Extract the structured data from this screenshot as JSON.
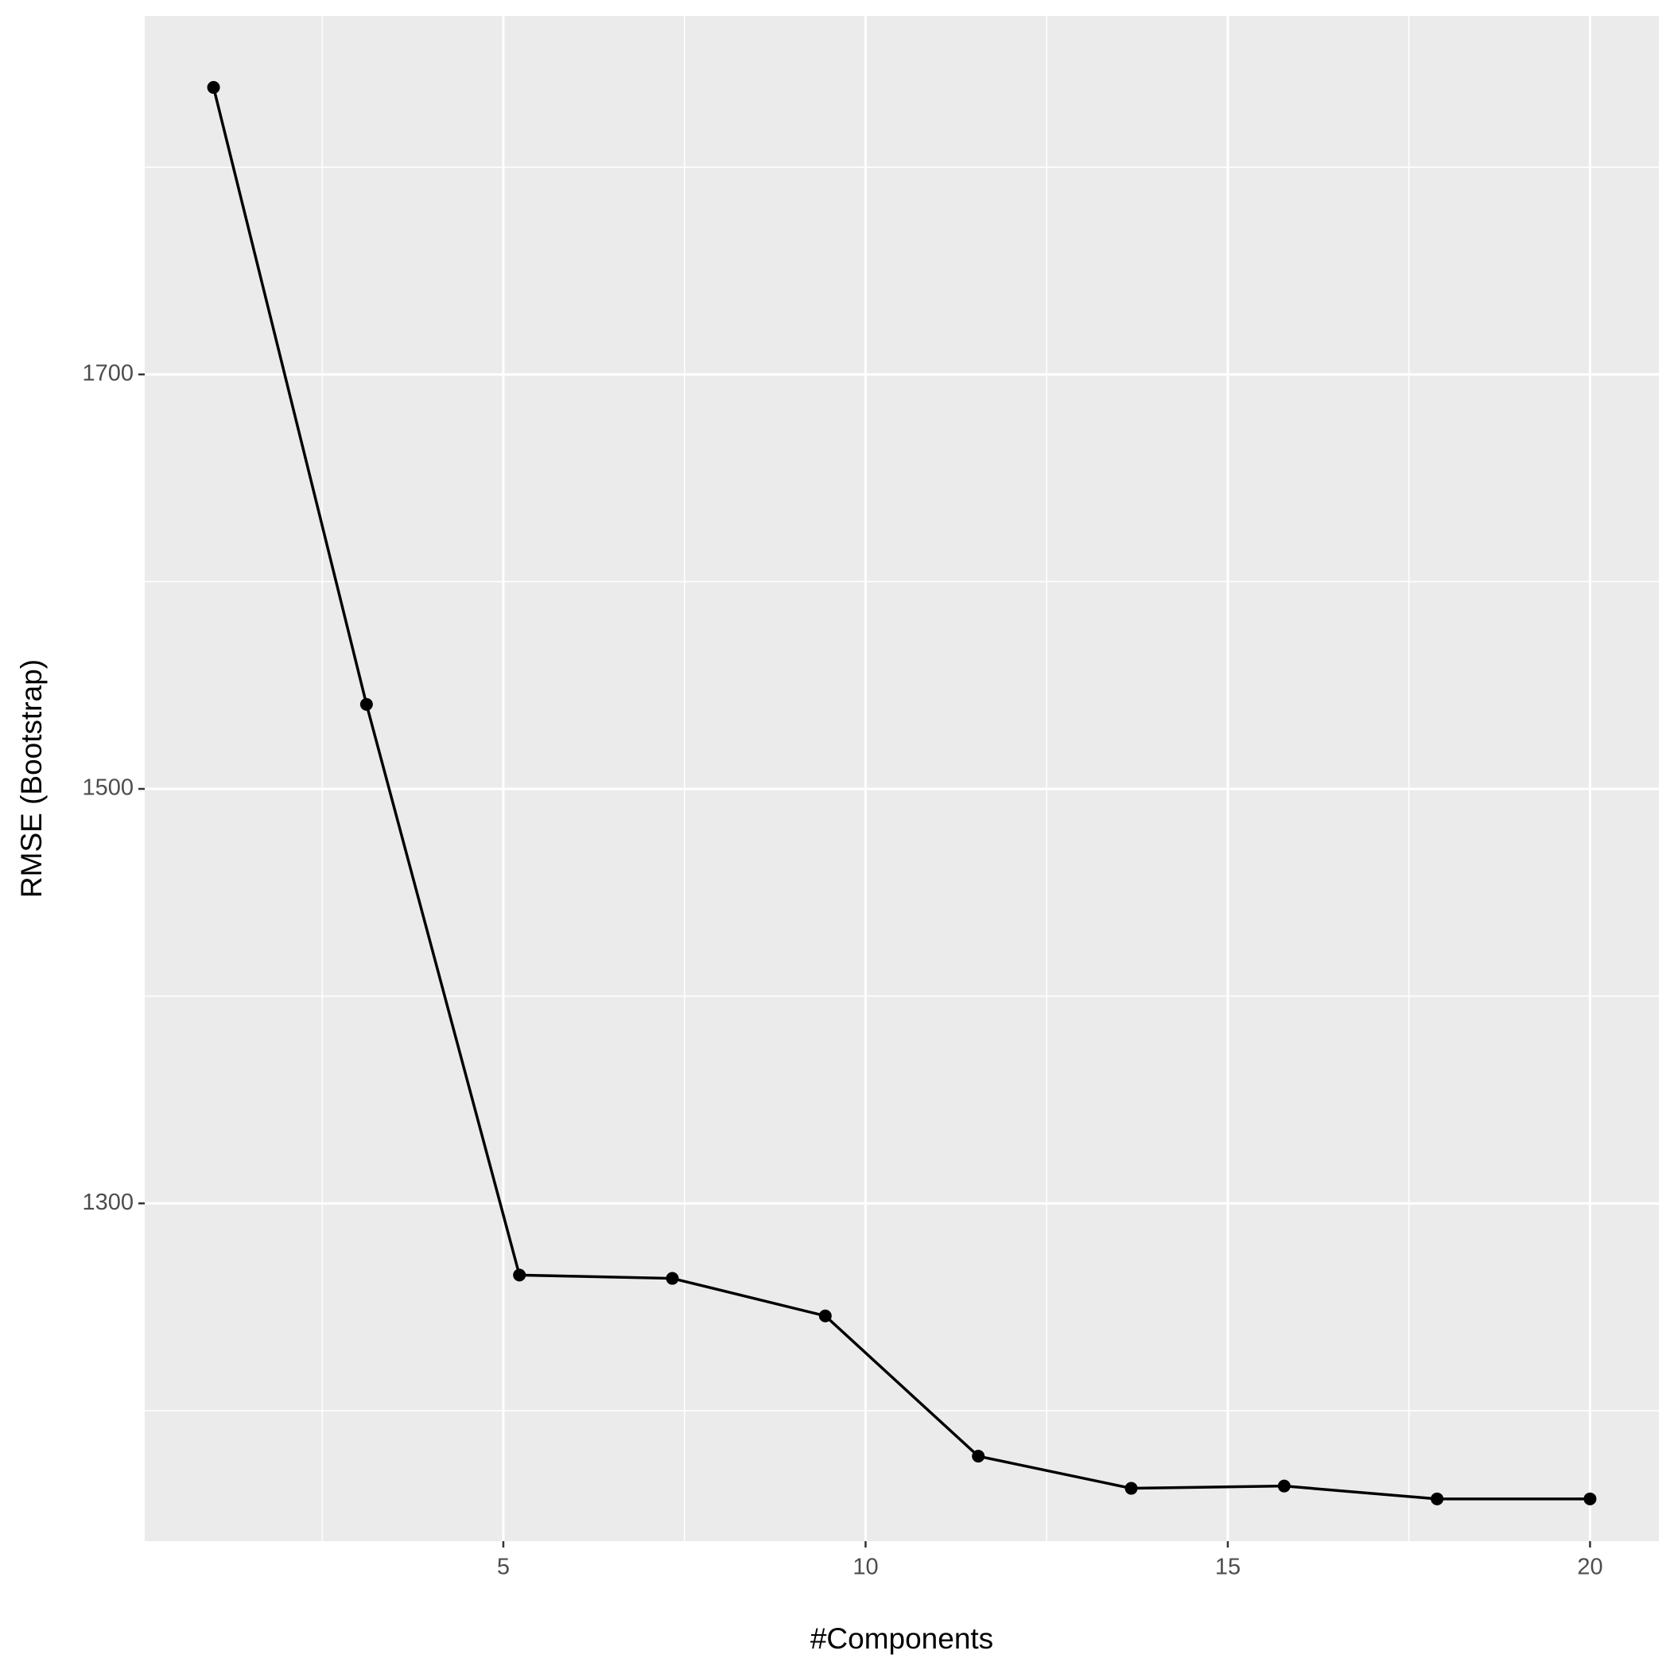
{
  "chart_data": {
    "type": "line",
    "x_label": "#Components",
    "y_label": "RMSE (Bootstrap)",
    "x": [
      1,
      3.111,
      5.222,
      7.333,
      9.444,
      11.556,
      13.667,
      15.778,
      17.889,
      20
    ],
    "series": [
      {
        "color": "#000000",
        "values": [
          1838.5,
          1540.8,
          1265.4,
          1263.8,
          1245.7,
          1178.0,
          1162.5,
          1163.6,
          1157.4,
          1157.4
        ]
      }
    ],
    "xlim": [
      0.05,
      20.95
    ],
    "xticks": [
      5,
      10,
      15,
      20
    ],
    "x_minor_ticks": [
      2.5,
      7.5,
      12.5,
      17.5
    ],
    "ylim": [
      1137,
      1873
    ],
    "yticks": [
      1300,
      1500,
      1700
    ],
    "y_minor_ticks": [
      1200,
      1400,
      1600,
      1800
    ],
    "grid": true,
    "markers": true
  }
}
